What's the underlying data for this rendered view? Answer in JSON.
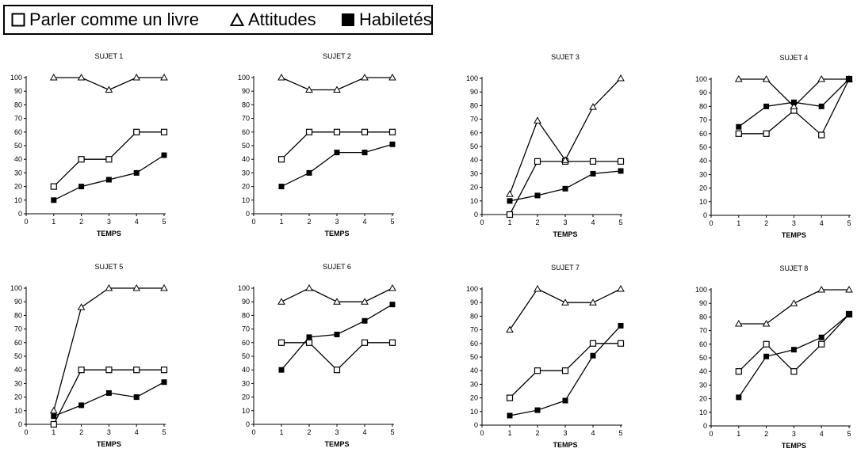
{
  "legend": [
    {
      "label": "Parler comme un livre",
      "marker": "open-square"
    },
    {
      "label": "Attitudes",
      "marker": "open-triangle"
    },
    {
      "label": "Habiletés",
      "marker": "filled-square"
    }
  ],
  "chart_data": [
    {
      "type": "line",
      "title": "SUJET 1",
      "xlabel": "TEMPS",
      "x": [
        1,
        2,
        3,
        4,
        5
      ],
      "xlim": [
        0,
        5
      ],
      "ylim": [
        0,
        100
      ],
      "x_ticks": [
        0,
        1,
        2,
        3,
        4,
        5
      ],
      "y_ticks": [
        0,
        10,
        20,
        30,
        40,
        50,
        60,
        70,
        80,
        90,
        100
      ],
      "series": [
        {
          "name": "Parler comme un livre",
          "marker": "open-square",
          "values": [
            20,
            40,
            40,
            60,
            60
          ]
        },
        {
          "name": "Attitudes",
          "marker": "open-triangle",
          "values": [
            100,
            100,
            91,
            100,
            100
          ]
        },
        {
          "name": "Habiletés",
          "marker": "filled-square",
          "values": [
            10,
            20,
            25,
            30,
            43
          ]
        }
      ]
    },
    {
      "type": "line",
      "title": "SUJET 2",
      "xlabel": "TEMPS",
      "x": [
        1,
        2,
        3,
        4,
        5
      ],
      "xlim": [
        0,
        5
      ],
      "ylim": [
        0,
        100
      ],
      "x_ticks": [
        0,
        1,
        2,
        3,
        4,
        5
      ],
      "y_ticks": [
        0,
        10,
        20,
        30,
        40,
        50,
        60,
        70,
        80,
        90,
        100
      ],
      "series": [
        {
          "name": "Parler comme un livre",
          "marker": "open-square",
          "values": [
            40,
            60,
            60,
            60,
            60
          ]
        },
        {
          "name": "Attitudes",
          "marker": "open-triangle",
          "values": [
            100,
            91,
            91,
            100,
            100
          ]
        },
        {
          "name": "Habiletés",
          "marker": "filled-square",
          "values": [
            20,
            30,
            45,
            45,
            51
          ]
        }
      ]
    },
    {
      "type": "line",
      "title": "SUJET 3",
      "xlabel": "TEMPS",
      "x": [
        1,
        2,
        3,
        4,
        5
      ],
      "xlim": [
        0,
        5
      ],
      "ylim": [
        0,
        100
      ],
      "x_ticks": [
        0,
        1,
        2,
        3,
        4,
        5
      ],
      "y_ticks": [
        0,
        10,
        20,
        30,
        40,
        50,
        60,
        70,
        80,
        90,
        100
      ],
      "series": [
        {
          "name": "Parler comme un livre",
          "marker": "open-square",
          "values": [
            0,
            39,
            39,
            39,
            39
          ]
        },
        {
          "name": "Attitudes",
          "marker": "open-triangle",
          "values": [
            15,
            69,
            40,
            79,
            100
          ]
        },
        {
          "name": "Habiletés",
          "marker": "filled-square",
          "values": [
            10,
            14,
            19,
            30,
            32
          ]
        }
      ]
    },
    {
      "type": "line",
      "title": "SUJET 4",
      "xlabel": "TEMPS",
      "x": [
        1,
        2,
        3,
        4,
        5
      ],
      "xlim": [
        0,
        5
      ],
      "ylim": [
        0,
        100
      ],
      "x_ticks": [
        0,
        1,
        2,
        3,
        4,
        5
      ],
      "y_ticks": [
        0,
        10,
        20,
        30,
        40,
        50,
        60,
        70,
        80,
        90,
        100
      ],
      "series": [
        {
          "name": "Parler comme un livre",
          "marker": "open-square",
          "values": [
            60,
            60,
            77,
            59,
            100
          ]
        },
        {
          "name": "Attitudes",
          "marker": "open-triangle",
          "values": [
            100,
            100,
            80,
            100,
            100
          ]
        },
        {
          "name": "Habiletés",
          "marker": "filled-square",
          "values": [
            65,
            80,
            83,
            80,
            100
          ]
        }
      ]
    },
    {
      "type": "line",
      "title": "SUJET 5",
      "xlabel": "TEMPS",
      "x": [
        1,
        2,
        3,
        4,
        5
      ],
      "xlim": [
        0,
        5
      ],
      "ylim": [
        0,
        100
      ],
      "x_ticks": [
        0,
        1,
        2,
        3,
        4,
        5
      ],
      "y_ticks": [
        0,
        10,
        20,
        30,
        40,
        50,
        60,
        70,
        80,
        90,
        100
      ],
      "series": [
        {
          "name": "Parler comme un livre",
          "marker": "open-square",
          "values": [
            0,
            40,
            40,
            40,
            40
          ]
        },
        {
          "name": "Attitudes",
          "marker": "open-triangle",
          "values": [
            10,
            86,
            100,
            100,
            100
          ]
        },
        {
          "name": "Habiletés",
          "marker": "filled-square",
          "values": [
            6,
            14,
            23,
            20,
            31
          ]
        }
      ]
    },
    {
      "type": "line",
      "title": "SUJET 6",
      "xlabel": "TEMPS",
      "x": [
        1,
        2,
        3,
        4,
        5
      ],
      "xlim": [
        0,
        5
      ],
      "ylim": [
        0,
        100
      ],
      "x_ticks": [
        0,
        1,
        2,
        3,
        4,
        5
      ],
      "y_ticks": [
        0,
        10,
        20,
        30,
        40,
        50,
        60,
        70,
        80,
        90,
        100
      ],
      "series": [
        {
          "name": "Parler comme un livre",
          "marker": "open-square",
          "values": [
            60,
            60,
            40,
            60,
            60
          ]
        },
        {
          "name": "Attitudes",
          "marker": "open-triangle",
          "values": [
            90,
            100,
            90,
            90,
            100
          ]
        },
        {
          "name": "Habiletés",
          "marker": "filled-square",
          "values": [
            40,
            64,
            66,
            76,
            88
          ]
        }
      ]
    },
    {
      "type": "line",
      "title": "SUJET 7",
      "xlabel": "TEMPS",
      "x": [
        1,
        2,
        3,
        4,
        5
      ],
      "xlim": [
        0,
        5
      ],
      "ylim": [
        0,
        100
      ],
      "x_ticks": [
        0,
        1,
        2,
        3,
        4,
        5
      ],
      "y_ticks": [
        0,
        10,
        20,
        30,
        40,
        50,
        60,
        70,
        80,
        90,
        100
      ],
      "series": [
        {
          "name": "Parler comme un livre",
          "marker": "open-square",
          "values": [
            20,
            40,
            40,
            60,
            60
          ]
        },
        {
          "name": "Attitudes",
          "marker": "open-triangle",
          "values": [
            70,
            100,
            90,
            90,
            100
          ]
        },
        {
          "name": "Habiletés",
          "marker": "filled-square",
          "values": [
            7,
            11,
            18,
            51,
            73
          ]
        }
      ]
    },
    {
      "type": "line",
      "title": "SUJET 8",
      "xlabel": "TEMPS",
      "x": [
        1,
        2,
        3,
        4,
        5
      ],
      "xlim": [
        0,
        5
      ],
      "ylim": [
        0,
        100
      ],
      "x_ticks": [
        0,
        1,
        2,
        3,
        4,
        5
      ],
      "y_ticks": [
        0,
        10,
        20,
        30,
        40,
        50,
        60,
        70,
        80,
        90,
        100
      ],
      "series": [
        {
          "name": "Parler comme un livre",
          "marker": "open-square",
          "values": [
            40,
            60,
            40,
            60,
            82
          ]
        },
        {
          "name": "Attitudes",
          "marker": "open-triangle",
          "values": [
            75,
            75,
            90,
            100,
            100
          ]
        },
        {
          "name": "Habiletés",
          "marker": "filled-square",
          "values": [
            21,
            51,
            56,
            65,
            82
          ]
        }
      ]
    }
  ]
}
